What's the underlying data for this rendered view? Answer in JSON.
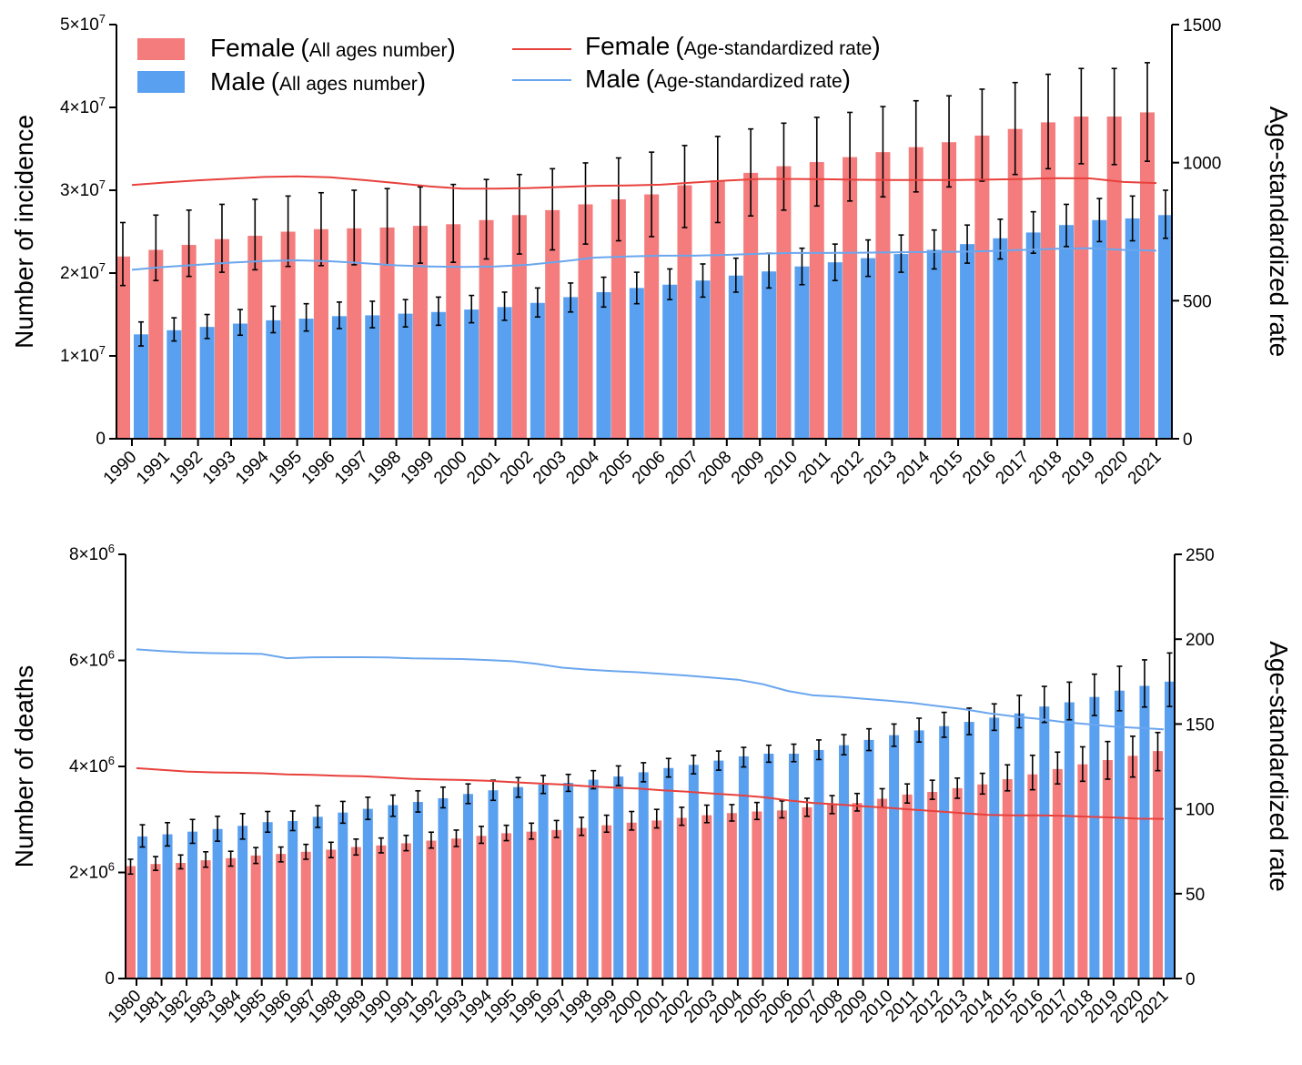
{
  "colors": {
    "female": "#f47c7c",
    "male": "#5aa0f0",
    "female_line": "#e8413c",
    "male_line": "#6aa6ee",
    "error": "#000000"
  },
  "legend": {
    "female_bar": {
      "name": "Female",
      "detail": "All ages number"
    },
    "male_bar": {
      "name": "Male",
      "detail": "All ages number"
    },
    "female_line": {
      "name": "Female",
      "detail": "Age-standardized rate"
    },
    "male_line": {
      "name": "Male",
      "detail": "Age-standardized rate"
    }
  },
  "chart_data": [
    {
      "type": "bar",
      "ylabel": "Number of incidence",
      "y2label": "Age-standardized rate",
      "ylim": [
        0,
        50000000
      ],
      "y2lim": [
        0,
        1500
      ],
      "yticks": [
        "0",
        "1×10",
        "2×10",
        "3×10",
        "4×10",
        "5×10"
      ],
      "ytick_exp": "7",
      "y2ticks": [
        "0",
        "500",
        "1000",
        "1500"
      ],
      "legend_position": "top-left",
      "categories": [
        "1990",
        "1991",
        "1992",
        "1993",
        "1994",
        "1995",
        "1996",
        "1997",
        "1998",
        "1999",
        "2000",
        "2001",
        "2002",
        "2003",
        "2004",
        "2005",
        "2006",
        "2007",
        "2008",
        "2009",
        "2010",
        "2011",
        "2012",
        "2013",
        "2014",
        "2015",
        "2016",
        "2017",
        "2018",
        "2019",
        "2020",
        "2021"
      ],
      "series": [
        {
          "name": "Female",
          "kind": "bar",
          "axis": "left",
          "values": [
            22000000,
            22800000,
            23400000,
            24100000,
            24500000,
            25000000,
            25300000,
            25400000,
            25500000,
            25700000,
            25900000,
            26400000,
            27000000,
            27600000,
            28300000,
            28900000,
            29500000,
            30600000,
            31200000,
            32100000,
            32900000,
            33400000,
            34000000,
            34600000,
            35200000,
            35800000,
            36600000,
            37400000,
            38200000,
            38900000,
            38900000,
            39400000
          ],
          "upper": [
            26100000,
            27000000,
            27600000,
            28300000,
            28900000,
            29300000,
            29700000,
            30000000,
            30200000,
            30400000,
            30700000,
            31300000,
            31900000,
            32600000,
            33300000,
            33900000,
            34600000,
            35400000,
            36500000,
            37400000,
            38100000,
            38800000,
            39400000,
            40100000,
            40800000,
            41400000,
            42200000,
            43000000,
            44000000,
            44700000,
            44700000,
            45400000
          ],
          "lower": [
            18500000,
            19100000,
            19600000,
            20100000,
            20400000,
            20800000,
            20900000,
            21000000,
            21000000,
            21200000,
            21300000,
            21700000,
            22300000,
            22800000,
            23500000,
            23900000,
            24400000,
            25500000,
            26100000,
            26900000,
            27600000,
            28100000,
            28700000,
            29200000,
            29800000,
            30400000,
            31100000,
            31900000,
            32600000,
            33200000,
            33100000,
            33500000
          ]
        },
        {
          "name": "Male",
          "kind": "bar",
          "axis": "left",
          "values": [
            12600000,
            13100000,
            13500000,
            13900000,
            14300000,
            14500000,
            14800000,
            14900000,
            15100000,
            15300000,
            15600000,
            15900000,
            16400000,
            17100000,
            17700000,
            18200000,
            18600000,
            19100000,
            19700000,
            20200000,
            20800000,
            21300000,
            21800000,
            22300000,
            22800000,
            23500000,
            24200000,
            24900000,
            25800000,
            26400000,
            26600000,
            27000000
          ],
          "upper": [
            14100000,
            14600000,
            15000000,
            15600000,
            16000000,
            16300000,
            16500000,
            16600000,
            16800000,
            17100000,
            17300000,
            17700000,
            18200000,
            18800000,
            19500000,
            20100000,
            20500000,
            21100000,
            21800000,
            22400000,
            23000000,
            23500000,
            24000000,
            24600000,
            25200000,
            25800000,
            26500000,
            27400000,
            28300000,
            29000000,
            29300000,
            30000000
          ],
          "lower": [
            11200000,
            11800000,
            12100000,
            12500000,
            12800000,
            13000000,
            13300000,
            13400000,
            13500000,
            13700000,
            14000000,
            14300000,
            14700000,
            15300000,
            15900000,
            16300000,
            16800000,
            17100000,
            17700000,
            18200000,
            18600000,
            19100000,
            19600000,
            20100000,
            20500000,
            21200000,
            21700000,
            22400000,
            23200000,
            23800000,
            23900000,
            24200000
          ]
        },
        {
          "name": "Female",
          "kind": "line",
          "axis": "right",
          "values": [
            919,
            928,
            936,
            942,
            948,
            950,
            947,
            937,
            926,
            914,
            906,
            906,
            908,
            912,
            916,
            917,
            920,
            928,
            935,
            941,
            941,
            940,
            938,
            937,
            937,
            937,
            939,
            941,
            944,
            943,
            930,
            926
          ]
        },
        {
          "name": "Male",
          "kind": "line",
          "axis": "right",
          "values": [
            612,
            622,
            630,
            638,
            644,
            646,
            643,
            636,
            628,
            624,
            622,
            624,
            630,
            642,
            656,
            660,
            663,
            663,
            666,
            670,
            673,
            673,
            674,
            675,
            676,
            677,
            680,
            684,
            688,
            690,
            684,
            681
          ]
        }
      ]
    },
    {
      "type": "bar",
      "ylabel": "Number of deaths",
      "y2label": "Age-standardized rate",
      "ylim": [
        0,
        8000000
      ],
      "y2lim": [
        0,
        250
      ],
      "yticks": [
        "0",
        "2×10",
        "4×10",
        "6×10",
        "8×10"
      ],
      "ytick_exp": "6",
      "y2ticks": [
        "0",
        "50",
        "100",
        "150",
        "200",
        "250"
      ],
      "categories": [
        "1980",
        "1981",
        "1982",
        "1983",
        "1984",
        "1985",
        "1986",
        "1987",
        "1988",
        "1989",
        "1990",
        "1991",
        "1992",
        "1993",
        "1994",
        "1995",
        "1996",
        "1997",
        "1998",
        "1999",
        "2000",
        "2001",
        "2002",
        "2003",
        "2004",
        "2005",
        "2006",
        "2007",
        "2008",
        "2009",
        "2010",
        "2011",
        "2012",
        "2013",
        "2014",
        "2015",
        "2016",
        "2017",
        "2018",
        "2019",
        "2020",
        "2021"
      ],
      "series": [
        {
          "name": "Female",
          "kind": "bar",
          "axis": "left",
          "values": [
            2120000,
            2160000,
            2180000,
            2230000,
            2270000,
            2320000,
            2350000,
            2390000,
            2430000,
            2480000,
            2510000,
            2550000,
            2600000,
            2640000,
            2690000,
            2740000,
            2770000,
            2800000,
            2840000,
            2890000,
            2940000,
            2980000,
            3030000,
            3080000,
            3120000,
            3150000,
            3170000,
            3230000,
            3280000,
            3310000,
            3390000,
            3470000,
            3520000,
            3590000,
            3660000,
            3760000,
            3850000,
            3950000,
            4040000,
            4120000,
            4200000,
            4290000
          ],
          "upper": [
            2250000,
            2300000,
            2330000,
            2390000,
            2400000,
            2470000,
            2480000,
            2530000,
            2570000,
            2630000,
            2650000,
            2700000,
            2760000,
            2800000,
            2870000,
            2890000,
            2930000,
            2980000,
            3040000,
            3080000,
            3150000,
            3190000,
            3230000,
            3270000,
            3280000,
            3320000,
            3350000,
            3400000,
            3450000,
            3490000,
            3580000,
            3670000,
            3740000,
            3780000,
            3870000,
            4030000,
            4210000,
            4270000,
            4370000,
            4470000,
            4570000,
            4640000
          ],
          "lower": [
            1970000,
            2040000,
            2070000,
            2100000,
            2120000,
            2170000,
            2200000,
            2250000,
            2280000,
            2330000,
            2370000,
            2410000,
            2460000,
            2490000,
            2550000,
            2600000,
            2630000,
            2660000,
            2700000,
            2760000,
            2800000,
            2840000,
            2890000,
            2940000,
            2970000,
            3000000,
            3030000,
            3060000,
            3110000,
            3160000,
            3230000,
            3310000,
            3380000,
            3400000,
            3480000,
            3540000,
            3560000,
            3670000,
            3720000,
            3760000,
            3800000,
            3920000
          ]
        },
        {
          "name": "Male",
          "kind": "bar",
          "axis": "left",
          "values": [
            2680000,
            2720000,
            2770000,
            2820000,
            2880000,
            2950000,
            2970000,
            3050000,
            3130000,
            3200000,
            3270000,
            3330000,
            3400000,
            3480000,
            3550000,
            3610000,
            3660000,
            3690000,
            3750000,
            3810000,
            3890000,
            3970000,
            4030000,
            4110000,
            4190000,
            4240000,
            4240000,
            4310000,
            4400000,
            4500000,
            4590000,
            4680000,
            4760000,
            4840000,
            4920000,
            5000000,
            5130000,
            5210000,
            5310000,
            5430000,
            5520000,
            5600000
          ],
          "upper": [
            2900000,
            2940000,
            3000000,
            3060000,
            3110000,
            3150000,
            3160000,
            3260000,
            3340000,
            3420000,
            3460000,
            3540000,
            3610000,
            3670000,
            3740000,
            3790000,
            3830000,
            3850000,
            3920000,
            4010000,
            4070000,
            4150000,
            4210000,
            4290000,
            4360000,
            4400000,
            4420000,
            4500000,
            4600000,
            4710000,
            4800000,
            4910000,
            5020000,
            5100000,
            5180000,
            5340000,
            5510000,
            5590000,
            5740000,
            5890000,
            6010000,
            6140000
          ],
          "lower": [
            2480000,
            2500000,
            2550000,
            2590000,
            2630000,
            2760000,
            2790000,
            2850000,
            2930000,
            3000000,
            3060000,
            3140000,
            3220000,
            3300000,
            3360000,
            3420000,
            3490000,
            3530000,
            3580000,
            3640000,
            3710000,
            3800000,
            3860000,
            3930000,
            3990000,
            4080000,
            4090000,
            4130000,
            4220000,
            4300000,
            4380000,
            4460000,
            4550000,
            4600000,
            4680000,
            4730000,
            4830000,
            4880000,
            4960000,
            5050000,
            5120000,
            5130000
          ]
        },
        {
          "name": "Female",
          "kind": "line",
          "axis": "right",
          "values": [
            124,
            123,
            122,
            121.5,
            121.3,
            121,
            120.3,
            120,
            119.5,
            119.2,
            118.5,
            117.7,
            117.3,
            117,
            116.6,
            115.7,
            115,
            114.3,
            113.3,
            112.6,
            112,
            110.9,
            110.1,
            109,
            108.1,
            106.9,
            105,
            103.5,
            102.6,
            101.5,
            100.6,
            99.5,
            98.5,
            97.4,
            96.4,
            96.2,
            96.2,
            95.9,
            95.4,
            94.9,
            94.2,
            94.1
          ]
        },
        {
          "name": "Male",
          "kind": "line",
          "axis": "right",
          "values": [
            194,
            193,
            192.2,
            191.8,
            191.6,
            191.3,
            188.8,
            189.3,
            189.4,
            189.4,
            189.2,
            188.7,
            188.5,
            188.3,
            187.7,
            187,
            185.4,
            183.2,
            182.1,
            181.2,
            180.5,
            179.5,
            178.5,
            177.3,
            176.1,
            173.5,
            169.5,
            166.9,
            166.1,
            164.9,
            163.8,
            162.4,
            160.5,
            158.8,
            156.4,
            154.5,
            153,
            151.2,
            149.9,
            148.5,
            147.7,
            146.9
          ]
        }
      ]
    }
  ]
}
